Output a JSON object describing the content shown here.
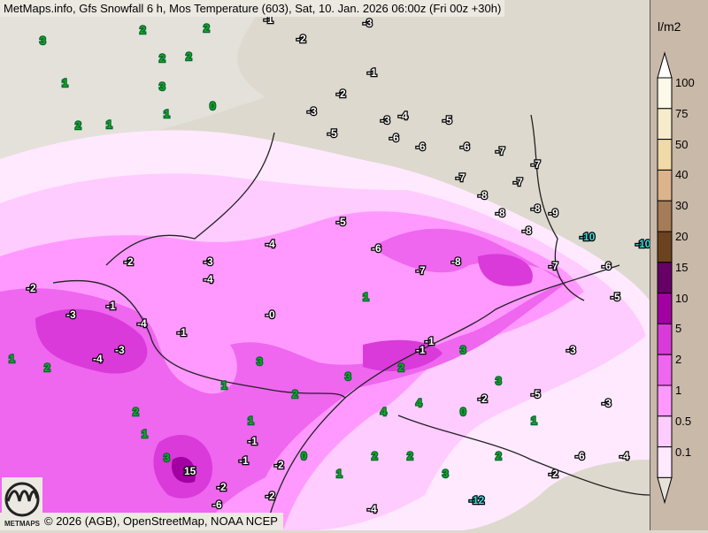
{
  "title": "MetMaps.info, Gfs Snowfall 6 h, Mos Temperature (603), Sat, 10. Jan. 2026 06:00z (Fri 00z +30h)",
  "credit": "© 2026 (AGB), OpenStreetMap, NOAA NCEP",
  "logo_text": "METMAPS",
  "legend": {
    "unit": "l/m2",
    "labels": [
      "100",
      "75",
      "50",
      "40",
      "30",
      "20",
      "15",
      "10",
      "5",
      "2",
      "1",
      "0.5",
      "0.1"
    ],
    "colors": [
      "#fdf9ea",
      "#f6eccb",
      "#f0daa8",
      "#dcb38b",
      "#a67b58",
      "#6b431f",
      "#660066",
      "#a300a3",
      "#d93ad9",
      "#ef66ef",
      "#ff99ff",
      "#ffccff",
      "#ffe9ff"
    ],
    "below_color": "#e6e2da"
  },
  "map": {
    "land_color": "#ded9ce",
    "temperature_labels": [
      "3",
      "2",
      "1",
      "2",
      "3",
      "2",
      "1",
      "2",
      "2",
      "1",
      "0",
      "-1",
      "-2",
      "-3",
      "-1",
      "-2",
      "-3",
      "-3",
      "-4",
      "-5",
      "-5",
      "-6",
      "-6",
      "-6",
      "-7",
      "-7",
      "-7",
      "-7",
      "-8",
      "-8",
      "-8",
      "-9",
      "-10",
      "-10",
      "-5",
      "-6",
      "-7",
      "-8",
      "-8",
      "-7",
      "-6",
      "-5",
      "-4",
      "-3",
      "-2",
      "-1",
      "-3",
      "-4",
      "-4",
      "-3",
      "-2",
      "-1",
      "-0",
      "1",
      "2",
      "3",
      "3",
      "4",
      "4",
      "3",
      "2",
      "1",
      "0",
      "-1",
      "-2",
      "-2",
      "-1",
      "1",
      "2",
      "2",
      "3",
      "2",
      "1",
      "15",
      "3",
      "-1",
      "-2",
      "-6",
      "-12",
      "-4",
      "-3",
      "-5",
      "-6",
      "-4",
      "-3",
      "-2",
      "1",
      "0",
      "-2",
      "-3",
      "2",
      "1",
      "3",
      "2",
      "1",
      "-1",
      "-4"
    ]
  }
}
